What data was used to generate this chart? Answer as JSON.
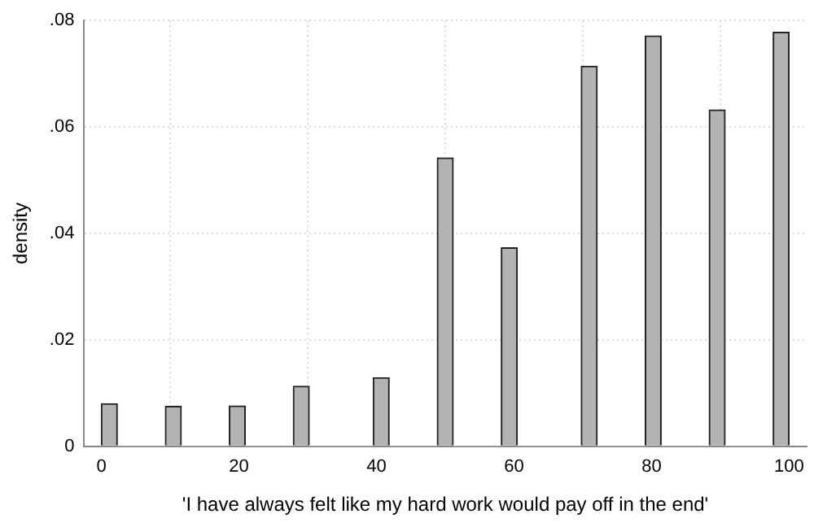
{
  "chart_data": {
    "type": "histogram",
    "xlabel": "'I have always felt like my hard work would pay off in the end'",
    "ylabel": "density",
    "bins": [
      0,
      2.33,
      4.65,
      6.98,
      9.3,
      11.63,
      13.95,
      16.28,
      18.6,
      20.93,
      23.26,
      25.58,
      27.91,
      30.23,
      32.56,
      34.88,
      37.21,
      39.53,
      41.86,
      44.19,
      46.51,
      48.84,
      51.16,
      53.49,
      55.81,
      58.14,
      60.47,
      62.79,
      65.12,
      67.44,
      69.77,
      72.09,
      74.42,
      76.74,
      79.07,
      81.4,
      83.72,
      86.05,
      88.37,
      90.7,
      93.02,
      95.35,
      97.67,
      100
    ],
    "values": [
      0.008,
      0,
      0,
      0,
      0.0075,
      0,
      0,
      0,
      0.0076,
      0,
      0,
      0,
      0.0113,
      0,
      0,
      0,
      0,
      0.0129,
      0,
      0,
      0,
      0.0542,
      0,
      0,
      0,
      0.0373,
      0,
      0,
      0,
      0,
      0.0714,
      0,
      0,
      0,
      0.0771,
      0,
      0,
      0,
      0.0632,
      0,
      0,
      0,
      0.0778
    ],
    "color": "#b3b3b3",
    "xlim": [
      -2.5,
      102.5
    ],
    "xticks": [
      0,
      20,
      40,
      60,
      80,
      100
    ],
    "ylim": [
      0,
      0.08
    ],
    "yticks": [
      0,
      {
        "value": 0.02,
        "label": ".02"
      },
      {
        "value": 0.04,
        "label": ".04"
      },
      {
        "value": 0.06,
        "label": ".06"
      },
      {
        "value": 0.08,
        "label": ".08"
      }
    ],
    "grid": true
  }
}
